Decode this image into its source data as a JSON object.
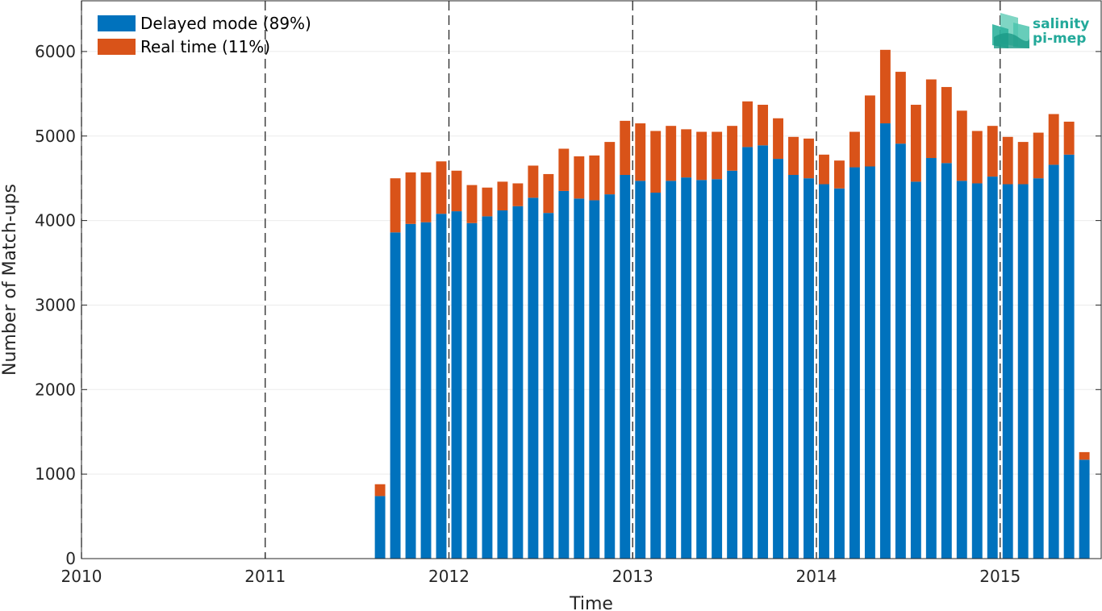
{
  "chart_data": {
    "type": "bar",
    "stacked": true,
    "xlabel": "Time",
    "ylabel": "Number of Match-ups",
    "ylim": [
      0,
      6600
    ],
    "yticks": [
      0,
      1000,
      2000,
      3000,
      4000,
      5000,
      6000
    ],
    "xlim": [
      2010,
      2015.55
    ],
    "xticks": [
      2010,
      2011,
      2012,
      2013,
      2014,
      2015
    ],
    "grid": "horizontal",
    "year_dividers": [
      2011,
      2012,
      2013,
      2014,
      2015
    ],
    "legend_position": "top-left",
    "x_start": "2011-08",
    "series": [
      {
        "name": "Delayed mode (89%)",
        "color": "#0072bd",
        "values": [
          740,
          3860,
          3960,
          3980,
          4080,
          4110,
          3970,
          4050,
          4120,
          4170,
          4270,
          4090,
          4350,
          4260,
          4240,
          4310,
          4540,
          4470,
          4330,
          4470,
          4510,
          4480,
          4490,
          4590,
          4870,
          4890,
          4730,
          4540,
          4500,
          4430,
          4380,
          4630,
          4640,
          5150,
          4910,
          4460,
          4740,
          4680,
          4470,
          4440,
          4520,
          4430,
          4430,
          4500,
          4660,
          4780,
          1170
        ]
      },
      {
        "name": "Real time (11%)",
        "color": "#d95319",
        "values": [
          140,
          640,
          610,
          590,
          620,
          480,
          450,
          340,
          340,
          270,
          380,
          460,
          500,
          500,
          530,
          620,
          640,
          680,
          730,
          650,
          570,
          570,
          560,
          530,
          540,
          480,
          480,
          450,
          470,
          350,
          330,
          420,
          840,
          870,
          850,
          910,
          930,
          900,
          830,
          620,
          600,
          560,
          500,
          540,
          600,
          390,
          90
        ]
      }
    ]
  },
  "logo": {
    "line1": "salinity",
    "line2": "pi-mep",
    "color": "#23a99a"
  }
}
